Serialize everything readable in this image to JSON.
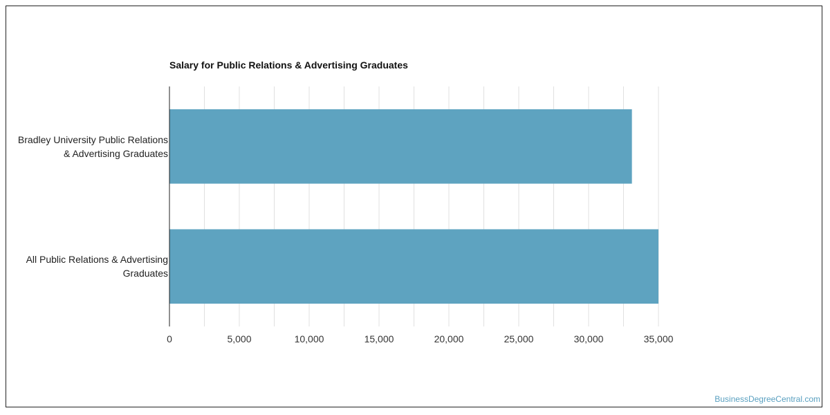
{
  "chart_data": {
    "type": "bar",
    "orientation": "horizontal",
    "title": "Salary for Public Relations & Advertising Graduates",
    "categories": [
      [
        "Bradley University Public Relations",
        "& Advertising Graduates"
      ],
      [
        "All Public Relations & Advertising",
        "Graduates"
      ]
    ],
    "values": [
      33100,
      35000
    ],
    "xlim": [
      0,
      35000
    ],
    "x_ticks": [
      0,
      5000,
      10000,
      15000,
      20000,
      25000,
      30000,
      35000
    ],
    "x_tick_labels": [
      "0",
      "5,000",
      "10,000",
      "15,000",
      "20,000",
      "25,000",
      "30,000",
      "35,000"
    ],
    "grid": true,
    "bar_color": "#5ea3c0",
    "grid_color": "#e0e0e0",
    "axis_color": "#222222"
  },
  "footer": {
    "watermark": "BusinessDegreeCentral.com"
  }
}
